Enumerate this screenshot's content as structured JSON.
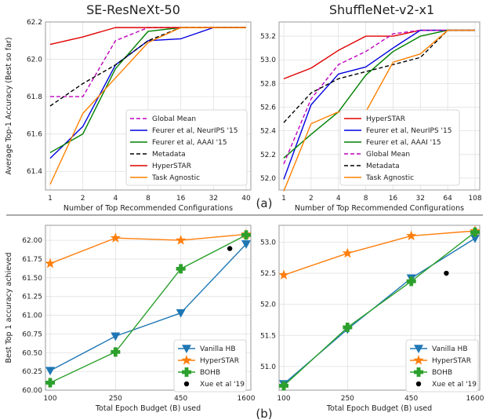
{
  "panel_labels": {
    "top": "(a)",
    "bottom": "(b)"
  },
  "chart_data": [
    {
      "id": "top-left",
      "type": "line",
      "title": "SE-ResNeXt-50",
      "xlabel": "Number of Top Recommended Configurations",
      "ylabel": "Average Top-1 Accuracy (Best so far)",
      "categories": [
        "1",
        "2",
        "4",
        "8",
        "16",
        "32",
        "40"
      ],
      "yticks": [
        "61.4",
        "61.6",
        "61.8",
        "62.0",
        "62.2"
      ],
      "ylim": [
        61.3,
        62.2
      ],
      "grid": true,
      "legend_position": "lower-right",
      "series": [
        {
          "name": "Global Mean",
          "color": "#bf00bf",
          "dash": "dashed",
          "values": [
            61.8,
            61.8,
            62.1,
            62.17,
            62.17,
            62.17,
            62.17
          ]
        },
        {
          "name": "Feurer et al, NeurIPS '15",
          "color": "#0000e0",
          "dash": "solid",
          "values": [
            61.47,
            61.64,
            61.97,
            62.1,
            62.11,
            62.17,
            62.17
          ]
        },
        {
          "name": "Feurer et al, AAAI '15",
          "color": "#008000",
          "dash": "solid",
          "values": [
            61.5,
            61.6,
            61.95,
            62.15,
            62.17,
            62.17,
            62.17
          ]
        },
        {
          "name": "Metadata",
          "color": "#000000",
          "dash": "dashed",
          "values": [
            61.75,
            61.87,
            61.97,
            62.1,
            62.17,
            62.17,
            62.17
          ]
        },
        {
          "name": "HyperSTAR",
          "color": "#e00000",
          "dash": "solid",
          "values": [
            62.08,
            62.12,
            62.17,
            62.17,
            62.17,
            62.17,
            62.17
          ]
        },
        {
          "name": "Task Agnostic",
          "color": "#ff8000",
          "dash": "solid",
          "values": [
            61.33,
            61.71,
            61.9,
            62.09,
            62.17,
            62.17,
            62.17
          ]
        }
      ]
    },
    {
      "id": "top-right",
      "type": "line",
      "title": "ShuffleNet-v2-x1",
      "xlabel": "Number of Top Recommended Configurations",
      "ylabel": "",
      "categories": [
        "1",
        "2",
        "4",
        "8",
        "16",
        "32",
        "64",
        "108"
      ],
      "yticks": [
        "52.0",
        "52.2",
        "52.4",
        "52.6",
        "52.8",
        "53.0",
        "53.2"
      ],
      "ylim": [
        51.9,
        53.32
      ],
      "grid": true,
      "legend_position": "lower-right",
      "series": [
        {
          "name": "HyperSTAR",
          "color": "#e00000",
          "dash": "solid",
          "values": [
            52.84,
            52.93,
            53.08,
            53.2,
            53.2,
            53.25,
            53.25,
            53.25
          ]
        },
        {
          "name": "Feurer et al, NeurIPS '15",
          "color": "#0000e0",
          "dash": "solid",
          "values": [
            51.99,
            52.62,
            52.88,
            52.94,
            53.1,
            53.25,
            53.25,
            53.25
          ]
        },
        {
          "name": "Feurer et al, AAAI '15",
          "color": "#008000",
          "dash": "solid",
          "values": [
            52.17,
            52.37,
            52.56,
            52.87,
            53.07,
            53.2,
            53.25,
            53.25
          ]
        },
        {
          "name": "Global Mean",
          "color": "#bf00bf",
          "dash": "dashed",
          "values": [
            52.12,
            52.67,
            52.96,
            53.07,
            53.22,
            53.25,
            53.25,
            53.25
          ]
        },
        {
          "name": "Metadata",
          "color": "#000000",
          "dash": "dashed",
          "values": [
            52.47,
            52.72,
            52.84,
            52.9,
            52.96,
            53.02,
            53.25,
            53.25
          ]
        },
        {
          "name": "Task Agnostic",
          "color": "#ff8000",
          "dash": "solid",
          "values": [
            51.89,
            52.46,
            52.56,
            52.56,
            52.98,
            53.05,
            53.25,
            53.25
          ]
        }
      ]
    },
    {
      "id": "bottom-left",
      "type": "line",
      "title": "",
      "xlabel": "Total Epoch Budget (B) used",
      "ylabel": "Best Top 1 accuracy achieved",
      "categories": [
        "100",
        "250",
        "450",
        "1600"
      ],
      "yticks": [
        "60.00",
        "60.25",
        "60.50",
        "60.75",
        "61.00",
        "61.25",
        "61.50",
        "61.75",
        "62.00"
      ],
      "ylim": [
        60.0,
        62.2
      ],
      "grid": true,
      "legend_position": "lower-right",
      "series": [
        {
          "name": "Vanilla HB",
          "color": "#1f77b4",
          "marker": "triangle-down",
          "values": [
            60.26,
            60.72,
            61.03,
            61.95
          ]
        },
        {
          "name": "HyperSTAR",
          "color": "#ff7f0e",
          "marker": "star",
          "values": [
            61.69,
            62.03,
            62.0,
            62.08
          ]
        },
        {
          "name": "BOHB",
          "color": "#2ca02c",
          "marker": "plus",
          "values": [
            60.1,
            60.51,
            61.62,
            62.07
          ]
        }
      ],
      "points": [
        {
          "name": "Xue et al '19",
          "color": "#000000",
          "marker": "circle",
          "x": "1600",
          "x_offset": -0.25,
          "y": 61.89
        }
      ]
    },
    {
      "id": "bottom-right",
      "type": "line",
      "title": "",
      "xlabel": "Total Epoch Budget (B) used",
      "ylabel": "",
      "categories": [
        "100",
        "250",
        "450",
        "1600"
      ],
      "yticks": [
        "51.0",
        "51.5",
        "52.0",
        "52.5",
        "53.0"
      ],
      "ylim": [
        50.62,
        53.27
      ],
      "grid": true,
      "legend_position": "lower-right",
      "series": [
        {
          "name": "Vanilla HB",
          "color": "#1f77b4",
          "marker": "triangle-down",
          "values": [
            50.72,
            51.6,
            52.42,
            53.06
          ]
        },
        {
          "name": "HyperSTAR",
          "color": "#ff7f0e",
          "marker": "star",
          "values": [
            52.47,
            52.82,
            53.1,
            53.18
          ]
        },
        {
          "name": "BOHB",
          "color": "#2ca02c",
          "marker": "plus",
          "values": [
            50.69,
            51.63,
            52.37,
            53.16
          ]
        }
      ],
      "points": [
        {
          "name": "Xue et al '19",
          "color": "#000000",
          "marker": "circle",
          "x": "1600",
          "x_offset": -0.45,
          "y": 52.5
        }
      ]
    }
  ]
}
